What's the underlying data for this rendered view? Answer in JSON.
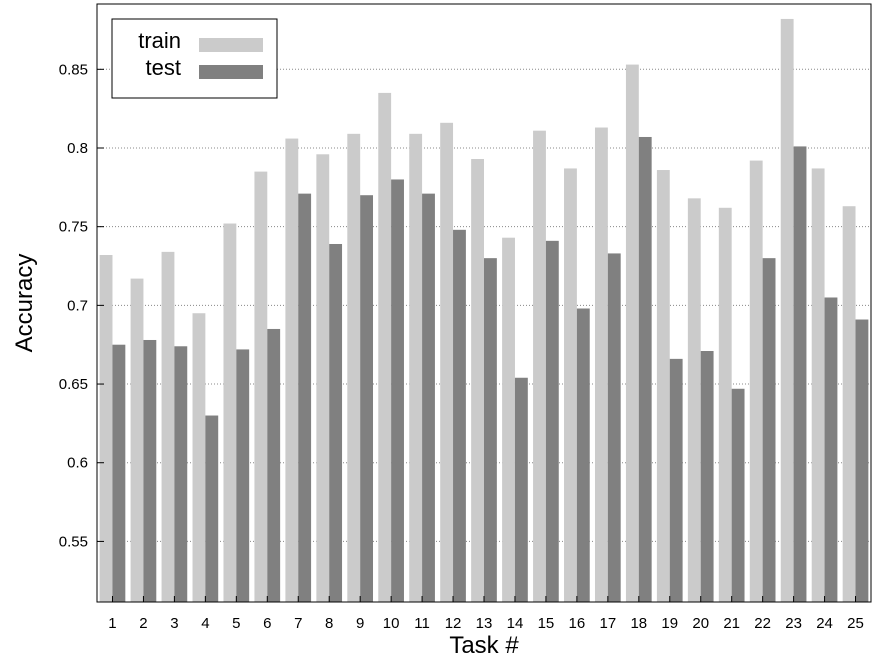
{
  "chart_data": {
    "type": "bar",
    "xlabel": "Task #",
    "ylabel": "Accuracy",
    "ylim": [
      0.5115,
      0.8915
    ],
    "yticks": [
      "0.55",
      "0.6",
      "0.65",
      "0.7",
      "0.75",
      "0.8",
      "0.85"
    ],
    "grid": "horizontal dotted",
    "legend_position": "top-left",
    "categories": [
      "1",
      "2",
      "3",
      "4",
      "5",
      "6",
      "7",
      "8",
      "9",
      "10",
      "11",
      "12",
      "13",
      "14",
      "15",
      "16",
      "17",
      "18",
      "19",
      "20",
      "21",
      "22",
      "23",
      "24",
      "25"
    ],
    "series": [
      {
        "name": "train",
        "color": "#cbcbcb",
        "values": [
          0.732,
          0.717,
          0.734,
          0.695,
          0.752,
          0.785,
          0.806,
          0.796,
          0.809,
          0.835,
          0.809,
          0.816,
          0.793,
          0.743,
          0.811,
          0.787,
          0.813,
          0.853,
          0.786,
          0.768,
          0.762,
          0.792,
          0.882,
          0.787,
          0.763
        ]
      },
      {
        "name": "test",
        "color": "#808080",
        "values": [
          0.675,
          0.678,
          0.674,
          0.63,
          0.672,
          0.685,
          0.771,
          0.739,
          0.77,
          0.78,
          0.771,
          0.748,
          0.73,
          0.654,
          0.741,
          0.698,
          0.733,
          0.807,
          0.666,
          0.671,
          0.647,
          0.73,
          0.801,
          0.705,
          0.691
        ]
      }
    ]
  }
}
